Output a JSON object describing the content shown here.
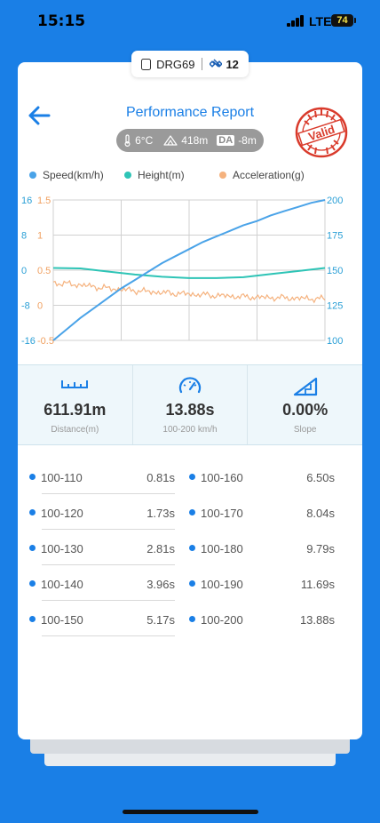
{
  "status_bar": {
    "time": "15:15",
    "network": "LTE",
    "battery": "74"
  },
  "device": {
    "name": "DRG69",
    "satellites": "12"
  },
  "header": {
    "title": "Performance Report",
    "temperature": "6°C",
    "altitude": "418m",
    "da_label": "DA",
    "density_altitude": "-8m",
    "stamp_text": "Valid"
  },
  "chart_data": {
    "type": "line",
    "x": [
      0,
      0.25,
      0.5,
      0.75,
      1
    ],
    "series": [
      {
        "name": "Speed(km/h)",
        "color": "#4aa3e8",
        "axis": "right",
        "x": [
          0,
          0.05,
          0.1,
          0.15,
          0.2,
          0.25,
          0.3,
          0.35,
          0.4,
          0.45,
          0.5,
          0.55,
          0.6,
          0.65,
          0.7,
          0.75,
          0.8,
          0.85,
          0.9,
          0.95,
          1.0
        ],
        "values": [
          100,
          108,
          116,
          123,
          130,
          137,
          143,
          149,
          155,
          160,
          165,
          170,
          174,
          178,
          182,
          185,
          189,
          192,
          195,
          198,
          200
        ]
      },
      {
        "name": "Height(m)",
        "color": "#2ec4b6",
        "axis": "left_outer",
        "x": [
          0,
          0.1,
          0.2,
          0.3,
          0.4,
          0.5,
          0.6,
          0.7,
          0.8,
          0.9,
          1.0
        ],
        "values": [
          0.5,
          0.4,
          -0.3,
          -1.0,
          -1.5,
          -1.8,
          -1.8,
          -1.6,
          -0.9,
          -0.2,
          0.5
        ]
      },
      {
        "name": "Acceleration(g)",
        "color": "#f5b27e",
        "axis": "left_inner",
        "x": [
          0,
          0.1,
          0.2,
          0.3,
          0.4,
          0.5,
          0.6,
          0.7,
          0.8,
          0.9,
          1.0
        ],
        "values": [
          0.32,
          0.29,
          0.24,
          0.21,
          0.18,
          0.16,
          0.14,
          0.12,
          0.11,
          0.1,
          0.09
        ]
      }
    ],
    "axes": {
      "left_outer": {
        "ticks": [
          "16",
          "8",
          "0",
          "-8",
          "-16"
        ],
        "range": [
          -16,
          16
        ],
        "color": "#2a9fd6"
      },
      "left_inner": {
        "ticks": [
          "1.5",
          "1",
          "0.5",
          "0",
          "-0.5"
        ],
        "range": [
          -0.5,
          1.5
        ],
        "color": "#f0a060"
      },
      "right": {
        "ticks": [
          "200",
          "175",
          "150",
          "125",
          "100"
        ],
        "range": [
          100,
          200
        ],
        "color": "#2a9fd6"
      }
    },
    "grid": true,
    "legend_position": "top"
  },
  "stats": [
    {
      "icon": "ruler-icon",
      "value": "611.91m",
      "label": "Distance(m)"
    },
    {
      "icon": "speedometer-icon",
      "value": "13.88s",
      "label": "100-200 km/h"
    },
    {
      "icon": "slope-icon",
      "value": "0.00%",
      "label": "Slope"
    }
  ],
  "splits_left": [
    {
      "range": "100-110",
      "time": "0.81s"
    },
    {
      "range": "100-120",
      "time": "1.73s"
    },
    {
      "range": "100-130",
      "time": "2.81s"
    },
    {
      "range": "100-140",
      "time": "3.96s"
    },
    {
      "range": "100-150",
      "time": "5.17s"
    }
  ],
  "splits_right": [
    {
      "range": "100-160",
      "time": "6.50s"
    },
    {
      "range": "100-170",
      "time": "8.04s"
    },
    {
      "range": "100-180",
      "time": "9.79s"
    },
    {
      "range": "100-190",
      "time": "11.69s"
    },
    {
      "range": "100-200",
      "time": "13.88s"
    }
  ]
}
